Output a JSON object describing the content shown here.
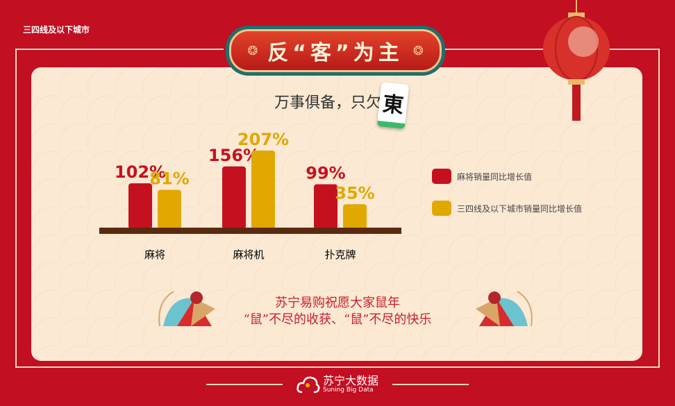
{
  "corner_label": "三四线及以下城市",
  "title": "反“客”为主",
  "subtitle": "万事俱备，只欠",
  "tile_char": "東",
  "wish": {
    "line1": "苏宁易购祝愿大家鼠年",
    "line2": "“鼠”不尽的收获、“鼠”不尽的快乐"
  },
  "footer": {
    "brand_cn": "苏宁大数据",
    "brand_en": "Suning Big Data"
  },
  "colors": {
    "background": "#c20f22",
    "panel": "#fbe9d4",
    "series1": "#c5111f",
    "series2": "#e0a800",
    "baseline": "#5a2a10"
  },
  "chart_data": {
    "type": "bar",
    "categories": [
      "麻将",
      "麻将机",
      "扑克牌"
    ],
    "series": [
      {
        "name": "麻将销量同比增长值",
        "values": [
          102,
          156,
          99
        ],
        "labels": [
          "102%",
          "156%",
          "99%"
        ]
      },
      {
        "name": "三四线及以下城市销量同比增长值",
        "values": [
          81,
          207,
          35
        ],
        "labels": [
          "81%",
          "207%",
          "35%"
        ]
      }
    ],
    "unit": "%",
    "legend": "right",
    "grid": false
  }
}
